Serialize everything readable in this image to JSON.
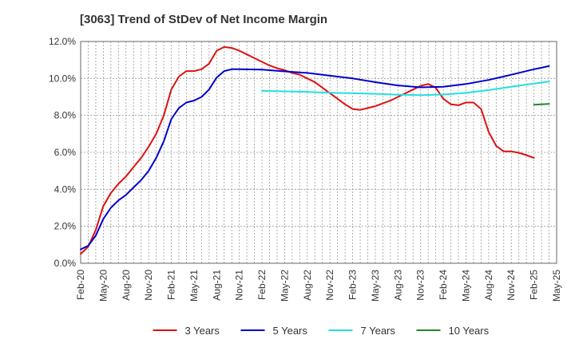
{
  "chart_data": {
    "type": "line",
    "title": "[3063]  Trend of StDev of Net Income Margin",
    "xlabel": "",
    "ylabel": "",
    "x_tick_labels": [
      "Feb-20",
      "May-20",
      "Aug-20",
      "Nov-20",
      "Feb-21",
      "May-21",
      "Aug-21",
      "Nov-21",
      "Feb-22",
      "May-22",
      "Aug-22",
      "Nov-22",
      "Feb-23",
      "May-23",
      "Aug-23",
      "Nov-23",
      "Feb-24",
      "May-24",
      "Aug-24",
      "Nov-24",
      "Feb-25",
      "May-25"
    ],
    "y_tick_labels": [
      "0.0%",
      "2.0%",
      "4.0%",
      "6.0%",
      "8.0%",
      "10.0%",
      "12.0%"
    ],
    "ylim": [
      0,
      12.0
    ],
    "y_unit": "%",
    "grid": true,
    "legend_position": "bottom",
    "series": [
      {
        "name": "3 Years",
        "color": "#dd1111",
        "points": [
          [
            "Feb-20",
            0.5
          ],
          [
            "Mar-20",
            0.9
          ],
          [
            "Apr-20",
            1.8
          ],
          [
            "May-20",
            3.1
          ],
          [
            "Jun-20",
            3.8
          ],
          [
            "Jul-20",
            4.3
          ],
          [
            "Aug-20",
            4.7
          ],
          [
            "Sep-20",
            5.2
          ],
          [
            "Oct-20",
            5.7
          ],
          [
            "Nov-20",
            6.3
          ],
          [
            "Dec-20",
            7.0
          ],
          [
            "Jan-21",
            8.0
          ],
          [
            "Feb-21",
            9.4
          ],
          [
            "Mar-21",
            10.1
          ],
          [
            "Apr-21",
            10.4
          ],
          [
            "May-21",
            10.4
          ],
          [
            "Jun-21",
            10.5
          ],
          [
            "Jul-21",
            10.8
          ],
          [
            "Aug-21",
            11.5
          ],
          [
            "Sep-21",
            11.7
          ],
          [
            "Oct-21",
            11.65
          ],
          [
            "Nov-21",
            11.5
          ],
          [
            "Dec-21",
            11.3
          ],
          [
            "Jan-22",
            11.1
          ],
          [
            "Feb-22",
            10.9
          ],
          [
            "Mar-22",
            10.7
          ],
          [
            "Apr-22",
            10.55
          ],
          [
            "May-22",
            10.45
          ],
          [
            "Jun-22",
            10.3
          ],
          [
            "Jul-22",
            10.2
          ],
          [
            "Aug-22",
            10.0
          ],
          [
            "Sep-22",
            9.8
          ],
          [
            "Oct-22",
            9.5
          ],
          [
            "Nov-22",
            9.2
          ],
          [
            "Dec-22",
            8.9
          ],
          [
            "Jan-23",
            8.6
          ],
          [
            "Feb-23",
            8.35
          ],
          [
            "Mar-23",
            8.3
          ],
          [
            "Apr-23",
            8.4
          ],
          [
            "May-23",
            8.5
          ],
          [
            "Jun-23",
            8.65
          ],
          [
            "Jul-23",
            8.8
          ],
          [
            "Aug-23",
            9.0
          ],
          [
            "Sep-23",
            9.2
          ],
          [
            "Oct-23",
            9.4
          ],
          [
            "Nov-23",
            9.6
          ],
          [
            "Dec-23",
            9.7
          ],
          [
            "Jan-24",
            9.5
          ],
          [
            "Feb-24",
            8.9
          ],
          [
            "Mar-24",
            8.6
          ],
          [
            "Apr-24",
            8.55
          ],
          [
            "May-24",
            8.7
          ],
          [
            "Jun-24",
            8.7
          ],
          [
            "Jul-24",
            8.35
          ],
          [
            "Aug-24",
            7.1
          ],
          [
            "Sep-24",
            6.35
          ],
          [
            "Oct-24",
            6.05
          ],
          [
            "Nov-24",
            6.05
          ],
          [
            "Dec-24",
            5.98
          ],
          [
            "Jan-25",
            5.85
          ],
          [
            "Feb-25",
            5.7
          ]
        ]
      },
      {
        "name": "5 Years",
        "color": "#0000cc",
        "points": [
          [
            "Feb-20",
            0.75
          ],
          [
            "Mar-20",
            0.95
          ],
          [
            "Apr-20",
            1.5
          ],
          [
            "May-20",
            2.4
          ],
          [
            "Jun-20",
            3.0
          ],
          [
            "Jul-20",
            3.4
          ],
          [
            "Aug-20",
            3.7
          ],
          [
            "Sep-20",
            4.1
          ],
          [
            "Oct-20",
            4.5
          ],
          [
            "Nov-20",
            5.0
          ],
          [
            "Dec-20",
            5.7
          ],
          [
            "Jan-21",
            6.6
          ],
          [
            "Feb-21",
            7.8
          ],
          [
            "Mar-21",
            8.4
          ],
          [
            "Apr-21",
            8.7
          ],
          [
            "May-21",
            8.8
          ],
          [
            "Jun-21",
            9.0
          ],
          [
            "Jul-21",
            9.4
          ],
          [
            "Aug-21",
            10.05
          ],
          [
            "Sep-21",
            10.4
          ],
          [
            "Oct-21",
            10.5
          ],
          [
            "Nov-21",
            10.5
          ],
          [
            "Feb-22",
            10.48
          ],
          [
            "May-22",
            10.38
          ],
          [
            "Aug-22",
            10.3
          ],
          [
            "Nov-22",
            10.15
          ],
          [
            "Feb-23",
            10.0
          ],
          [
            "May-23",
            9.8
          ],
          [
            "Aug-23",
            9.62
          ],
          [
            "Nov-23",
            9.52
          ],
          [
            "Feb-24",
            9.55
          ],
          [
            "May-24",
            9.7
          ],
          [
            "Aug-24",
            9.92
          ],
          [
            "Nov-24",
            10.2
          ],
          [
            "Feb-25",
            10.5
          ],
          [
            "Mar-25",
            10.58
          ],
          [
            "Apr-25",
            10.67
          ]
        ]
      },
      {
        "name": "7 Years",
        "color": "#22e0e0",
        "points": [
          [
            "Feb-22",
            9.33
          ],
          [
            "May-22",
            9.3
          ],
          [
            "Aug-22",
            9.27
          ],
          [
            "Nov-22",
            9.23
          ],
          [
            "Feb-23",
            9.2
          ],
          [
            "May-23",
            9.17
          ],
          [
            "Aug-23",
            9.12
          ],
          [
            "Nov-23",
            9.1
          ],
          [
            "Feb-24",
            9.13
          ],
          [
            "May-24",
            9.22
          ],
          [
            "Aug-24",
            9.37
          ],
          [
            "Nov-24",
            9.55
          ],
          [
            "Feb-25",
            9.72
          ],
          [
            "Apr-25",
            9.83
          ]
        ]
      },
      {
        "name": "10 Years",
        "color": "#228822",
        "points": [
          [
            "Feb-25",
            8.58
          ],
          [
            "Apr-25",
            8.62
          ]
        ]
      }
    ]
  }
}
